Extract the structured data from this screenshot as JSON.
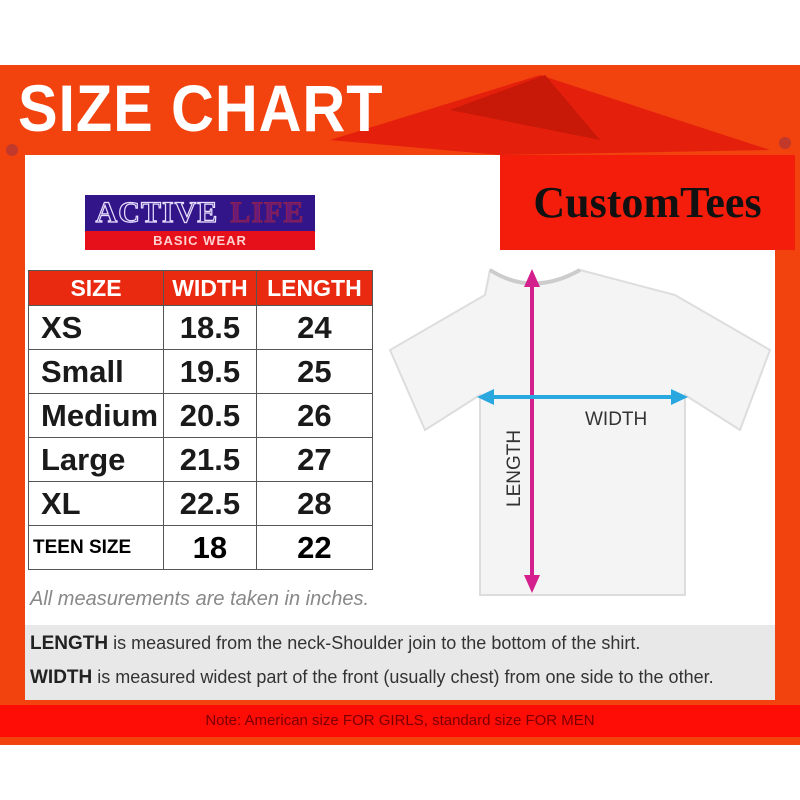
{
  "title": "SIZE CHART",
  "brand": "CustomTees",
  "logo": {
    "line1a": "ACTIVE",
    "line1b": "LIFE",
    "line2": "BASIC WEAR"
  },
  "table": {
    "headers": [
      "SIZE",
      "WIDTH",
      "LENGTH"
    ],
    "rows": [
      {
        "size": "XS",
        "width": "18.5",
        "length": "24"
      },
      {
        "size": "Small",
        "width": "19.5",
        "length": "25"
      },
      {
        "size": "Medium",
        "width": "20.5",
        "length": "26"
      },
      {
        "size": "Large",
        "width": "21.5",
        "length": "27"
      },
      {
        "size": "XL",
        "width": "22.5",
        "length": "28"
      },
      {
        "size": "TEEN SIZE",
        "width": "18",
        "length": "22"
      }
    ]
  },
  "diagram": {
    "width_label": "WIDTH",
    "length_label": "LENGTH",
    "width_color": "#29a8e0",
    "length_color": "#d4208c"
  },
  "units_note": "All measurements are taken in inches.",
  "definitions": [
    {
      "term": "LENGTH",
      "text": "is measured from the neck-Shoulder join to the bottom of the shirt."
    },
    {
      "term": "WIDTH",
      "text": "is measured widest part of the front (usually chest) from one side to the other."
    }
  ],
  "footer_note": "Note: American size FOR GIRLS, standard size FOR MEN",
  "colors": {
    "banner": "#f2430f",
    "header": "#e92a10",
    "logo_bg": "#33158a"
  }
}
